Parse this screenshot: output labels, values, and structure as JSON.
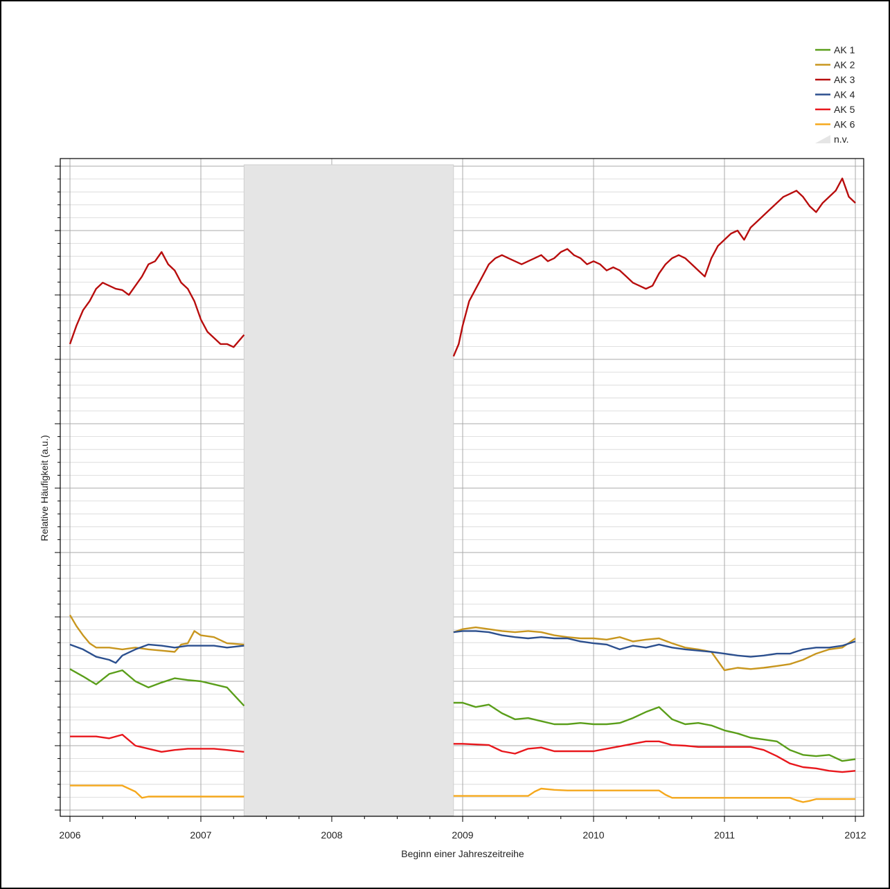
{
  "chart_data": {
    "type": "line",
    "title": "",
    "xlabel": "Beginn einer Jahreszeitreihe",
    "ylabel": "Relative Häufigkeit (a.u.)",
    "x_ticks": [
      "2006",
      "2007",
      "2008",
      "2009",
      "2010",
      "2011",
      "2012"
    ],
    "xlim": [
      2006,
      2012
    ],
    "ylim": [
      0,
      1050
    ],
    "y_tick_labels_shown": false,
    "grid": true,
    "legend_position": "top-right",
    "missing_interval": {
      "label": "n.v.",
      "start": 2007.33,
      "end": 2008.93,
      "color": "#e5e5e5"
    },
    "series": [
      {
        "name": "AK 1",
        "color": "#5a9e1a",
        "x": [
          2006,
          2006.1,
          2006.2,
          2006.3,
          2006.4,
          2006.5,
          2006.6,
          2006.7,
          2006.8,
          2006.9,
          2007,
          2007.1,
          2007.2,
          2007.33,
          2008.93,
          2009,
          2009.1,
          2009.2,
          2009.3,
          2009.4,
          2009.5,
          2009.6,
          2009.7,
          2009.8,
          2009.9,
          2010,
          2010.1,
          2010.2,
          2010.3,
          2010.4,
          2010.5,
          2010.6,
          2010.7,
          2010.8,
          2010.9,
          2011,
          2011.1,
          2011.2,
          2011.3,
          2011.4,
          2011.5,
          2011.6,
          2011.7,
          2011.8,
          2011.9,
          2012
        ],
        "values": [
          230,
          218,
          205,
          222,
          228,
          210,
          200,
          208,
          215,
          212,
          210,
          205,
          200,
          170,
          175,
          175,
          168,
          172,
          158,
          148,
          150,
          145,
          140,
          140,
          142,
          140,
          140,
          142,
          150,
          160,
          168,
          148,
          140,
          142,
          138,
          130,
          125,
          118,
          115,
          112,
          98,
          90,
          88,
          90,
          80,
          83
        ]
      },
      {
        "name": "AK 2",
        "color": "#c8961e",
        "x": [
          2006,
          2006.05,
          2006.1,
          2006.15,
          2006.2,
          2006.3,
          2006.4,
          2006.5,
          2006.6,
          2006.7,
          2006.8,
          2006.85,
          2006.9,
          2006.95,
          2007,
          2007.1,
          2007.2,
          2007.33,
          2008.93,
          2009,
          2009.1,
          2009.2,
          2009.3,
          2009.4,
          2009.5,
          2009.6,
          2009.7,
          2009.8,
          2009.9,
          2010,
          2010.1,
          2010.2,
          2010.3,
          2010.4,
          2010.5,
          2010.6,
          2010.7,
          2010.8,
          2010.9,
          2011,
          2011.1,
          2011.2,
          2011.3,
          2011.4,
          2011.5,
          2011.6,
          2011.7,
          2011.8,
          2011.9,
          2012
        ],
        "values": [
          318,
          300,
          285,
          272,
          265,
          265,
          262,
          265,
          262,
          260,
          258,
          270,
          272,
          292,
          285,
          282,
          272,
          270,
          290,
          295,
          298,
          295,
          292,
          290,
          292,
          290,
          285,
          282,
          280,
          280,
          278,
          282,
          275,
          278,
          280,
          272,
          265,
          262,
          258,
          228,
          232,
          230,
          232,
          235,
          238,
          245,
          255,
          262,
          265,
          280
        ]
      },
      {
        "name": "AK 3",
        "color": "#b80d0d",
        "x": [
          2006,
          2006.05,
          2006.1,
          2006.15,
          2006.2,
          2006.25,
          2006.3,
          2006.35,
          2006.4,
          2006.45,
          2006.5,
          2006.55,
          2006.6,
          2006.65,
          2006.7,
          2006.75,
          2006.8,
          2006.85,
          2006.9,
          2006.95,
          2007,
          2007.05,
          2007.1,
          2007.15,
          2007.2,
          2007.25,
          2007.33,
          2008.93,
          2008.97,
          2009,
          2009.05,
          2009.1,
          2009.15,
          2009.2,
          2009.25,
          2009.3,
          2009.35,
          2009.4,
          2009.45,
          2009.5,
          2009.55,
          2009.6,
          2009.65,
          2009.7,
          2009.75,
          2009.8,
          2009.85,
          2009.9,
          2009.95,
          2010,
          2010.05,
          2010.1,
          2010.15,
          2010.2,
          2010.25,
          2010.3,
          2010.35,
          2010.4,
          2010.45,
          2010.5,
          2010.55,
          2010.6,
          2010.65,
          2010.7,
          2010.75,
          2010.8,
          2010.85,
          2010.9,
          2010.95,
          2011,
          2011.05,
          2011.1,
          2011.15,
          2011.2,
          2011.25,
          2011.3,
          2011.35,
          2011.4,
          2011.45,
          2011.5,
          2011.55,
          2011.6,
          2011.65,
          2011.7,
          2011.75,
          2011.8,
          2011.85,
          2011.9,
          2011.95,
          2012
        ],
        "values": [
          760,
          790,
          815,
          830,
          850,
          860,
          855,
          850,
          848,
          840,
          855,
          870,
          890,
          895,
          910,
          890,
          880,
          860,
          850,
          830,
          800,
          780,
          770,
          760,
          760,
          755,
          775,
          740,
          760,
          790,
          830,
          850,
          870,
          890,
          900,
          905,
          900,
          895,
          890,
          895,
          900,
          905,
          895,
          900,
          910,
          915,
          905,
          900,
          890,
          895,
          890,
          880,
          885,
          880,
          870,
          860,
          855,
          850,
          855,
          875,
          890,
          900,
          905,
          900,
          890,
          880,
          870,
          900,
          920,
          930,
          940,
          945,
          930,
          950,
          960,
          970,
          980,
          990,
          1000,
          1005,
          1010,
          1000,
          985,
          975,
          990,
          1000,
          1010,
          1030,
          1000,
          990
        ]
      },
      {
        "name": "AK 4",
        "color": "#2b4f8e",
        "x": [
          2006,
          2006.1,
          2006.2,
          2006.3,
          2006.35,
          2006.4,
          2006.5,
          2006.6,
          2006.7,
          2006.8,
          2006.9,
          2007,
          2007.1,
          2007.2,
          2007.33,
          2008.93,
          2009,
          2009.1,
          2009.2,
          2009.3,
          2009.4,
          2009.5,
          2009.6,
          2009.7,
          2009.8,
          2009.9,
          2010,
          2010.1,
          2010.2,
          2010.3,
          2010.4,
          2010.5,
          2010.6,
          2010.7,
          2010.8,
          2010.9,
          2011,
          2011.1,
          2011.2,
          2011.3,
          2011.4,
          2011.5,
          2011.6,
          2011.7,
          2011.8,
          2011.9,
          2012
        ],
        "values": [
          270,
          262,
          250,
          245,
          240,
          252,
          262,
          270,
          268,
          265,
          268,
          268,
          268,
          265,
          268,
          290,
          292,
          292,
          290,
          285,
          282,
          280,
          282,
          280,
          280,
          275,
          272,
          270,
          262,
          268,
          265,
          270,
          265,
          262,
          260,
          258,
          255,
          252,
          250,
          252,
          255,
          255,
          262,
          265,
          265,
          268,
          275
        ]
      },
      {
        "name": "AK 5",
        "color": "#e8171c",
        "x": [
          2006,
          2006.1,
          2006.2,
          2006.3,
          2006.4,
          2006.5,
          2006.6,
          2006.7,
          2006.8,
          2006.9,
          2007,
          2007.1,
          2007.2,
          2007.33,
          2008.93,
          2009,
          2009.1,
          2009.2,
          2009.3,
          2009.4,
          2009.5,
          2009.6,
          2009.7,
          2009.8,
          2009.9,
          2010,
          2010.1,
          2010.2,
          2010.3,
          2010.4,
          2010.5,
          2010.6,
          2010.7,
          2010.8,
          2010.9,
          2011,
          2011.1,
          2011.2,
          2011.3,
          2011.4,
          2011.5,
          2011.6,
          2011.7,
          2011.8,
          2011.9,
          2012
        ],
        "values": [
          120,
          120,
          120,
          117,
          123,
          105,
          100,
          95,
          98,
          100,
          100,
          100,
          98,
          95,
          108,
          108,
          107,
          106,
          96,
          92,
          100,
          102,
          96,
          96,
          96,
          96,
          100,
          104,
          108,
          112,
          112,
          106,
          105,
          103,
          103,
          103,
          103,
          103,
          98,
          88,
          76,
          70,
          68,
          64,
          62,
          64
        ]
      },
      {
        "name": "AK 6",
        "color": "#f5a81c",
        "x": [
          2006,
          2006.1,
          2006.2,
          2006.3,
          2006.4,
          2006.5,
          2006.55,
          2006.6,
          2006.7,
          2006.8,
          2006.9,
          2007,
          2007.1,
          2007.2,
          2007.33,
          2008.93,
          2009,
          2009.1,
          2009.2,
          2009.3,
          2009.4,
          2009.5,
          2009.55,
          2009.6,
          2009.7,
          2009.8,
          2009.9,
          2010,
          2010.1,
          2010.2,
          2010.3,
          2010.4,
          2010.45,
          2010.5,
          2010.55,
          2010.6,
          2010.7,
          2010.8,
          2010.9,
          2011,
          2011.1,
          2011.2,
          2011.3,
          2011.4,
          2011.5,
          2011.55,
          2011.6,
          2011.65,
          2011.7,
          2011.8,
          2011.9,
          2012
        ],
        "values": [
          40,
          40,
          40,
          40,
          40,
          30,
          20,
          22,
          22,
          22,
          22,
          22,
          22,
          22,
          22,
          23,
          23,
          23,
          23,
          23,
          23,
          23,
          30,
          35,
          33,
          32,
          32,
          32,
          32,
          32,
          32,
          32,
          32,
          32,
          25,
          20,
          20,
          20,
          20,
          20,
          20,
          20,
          20,
          20,
          20,
          16,
          13,
          15,
          18,
          18,
          18,
          18
        ]
      }
    ]
  }
}
